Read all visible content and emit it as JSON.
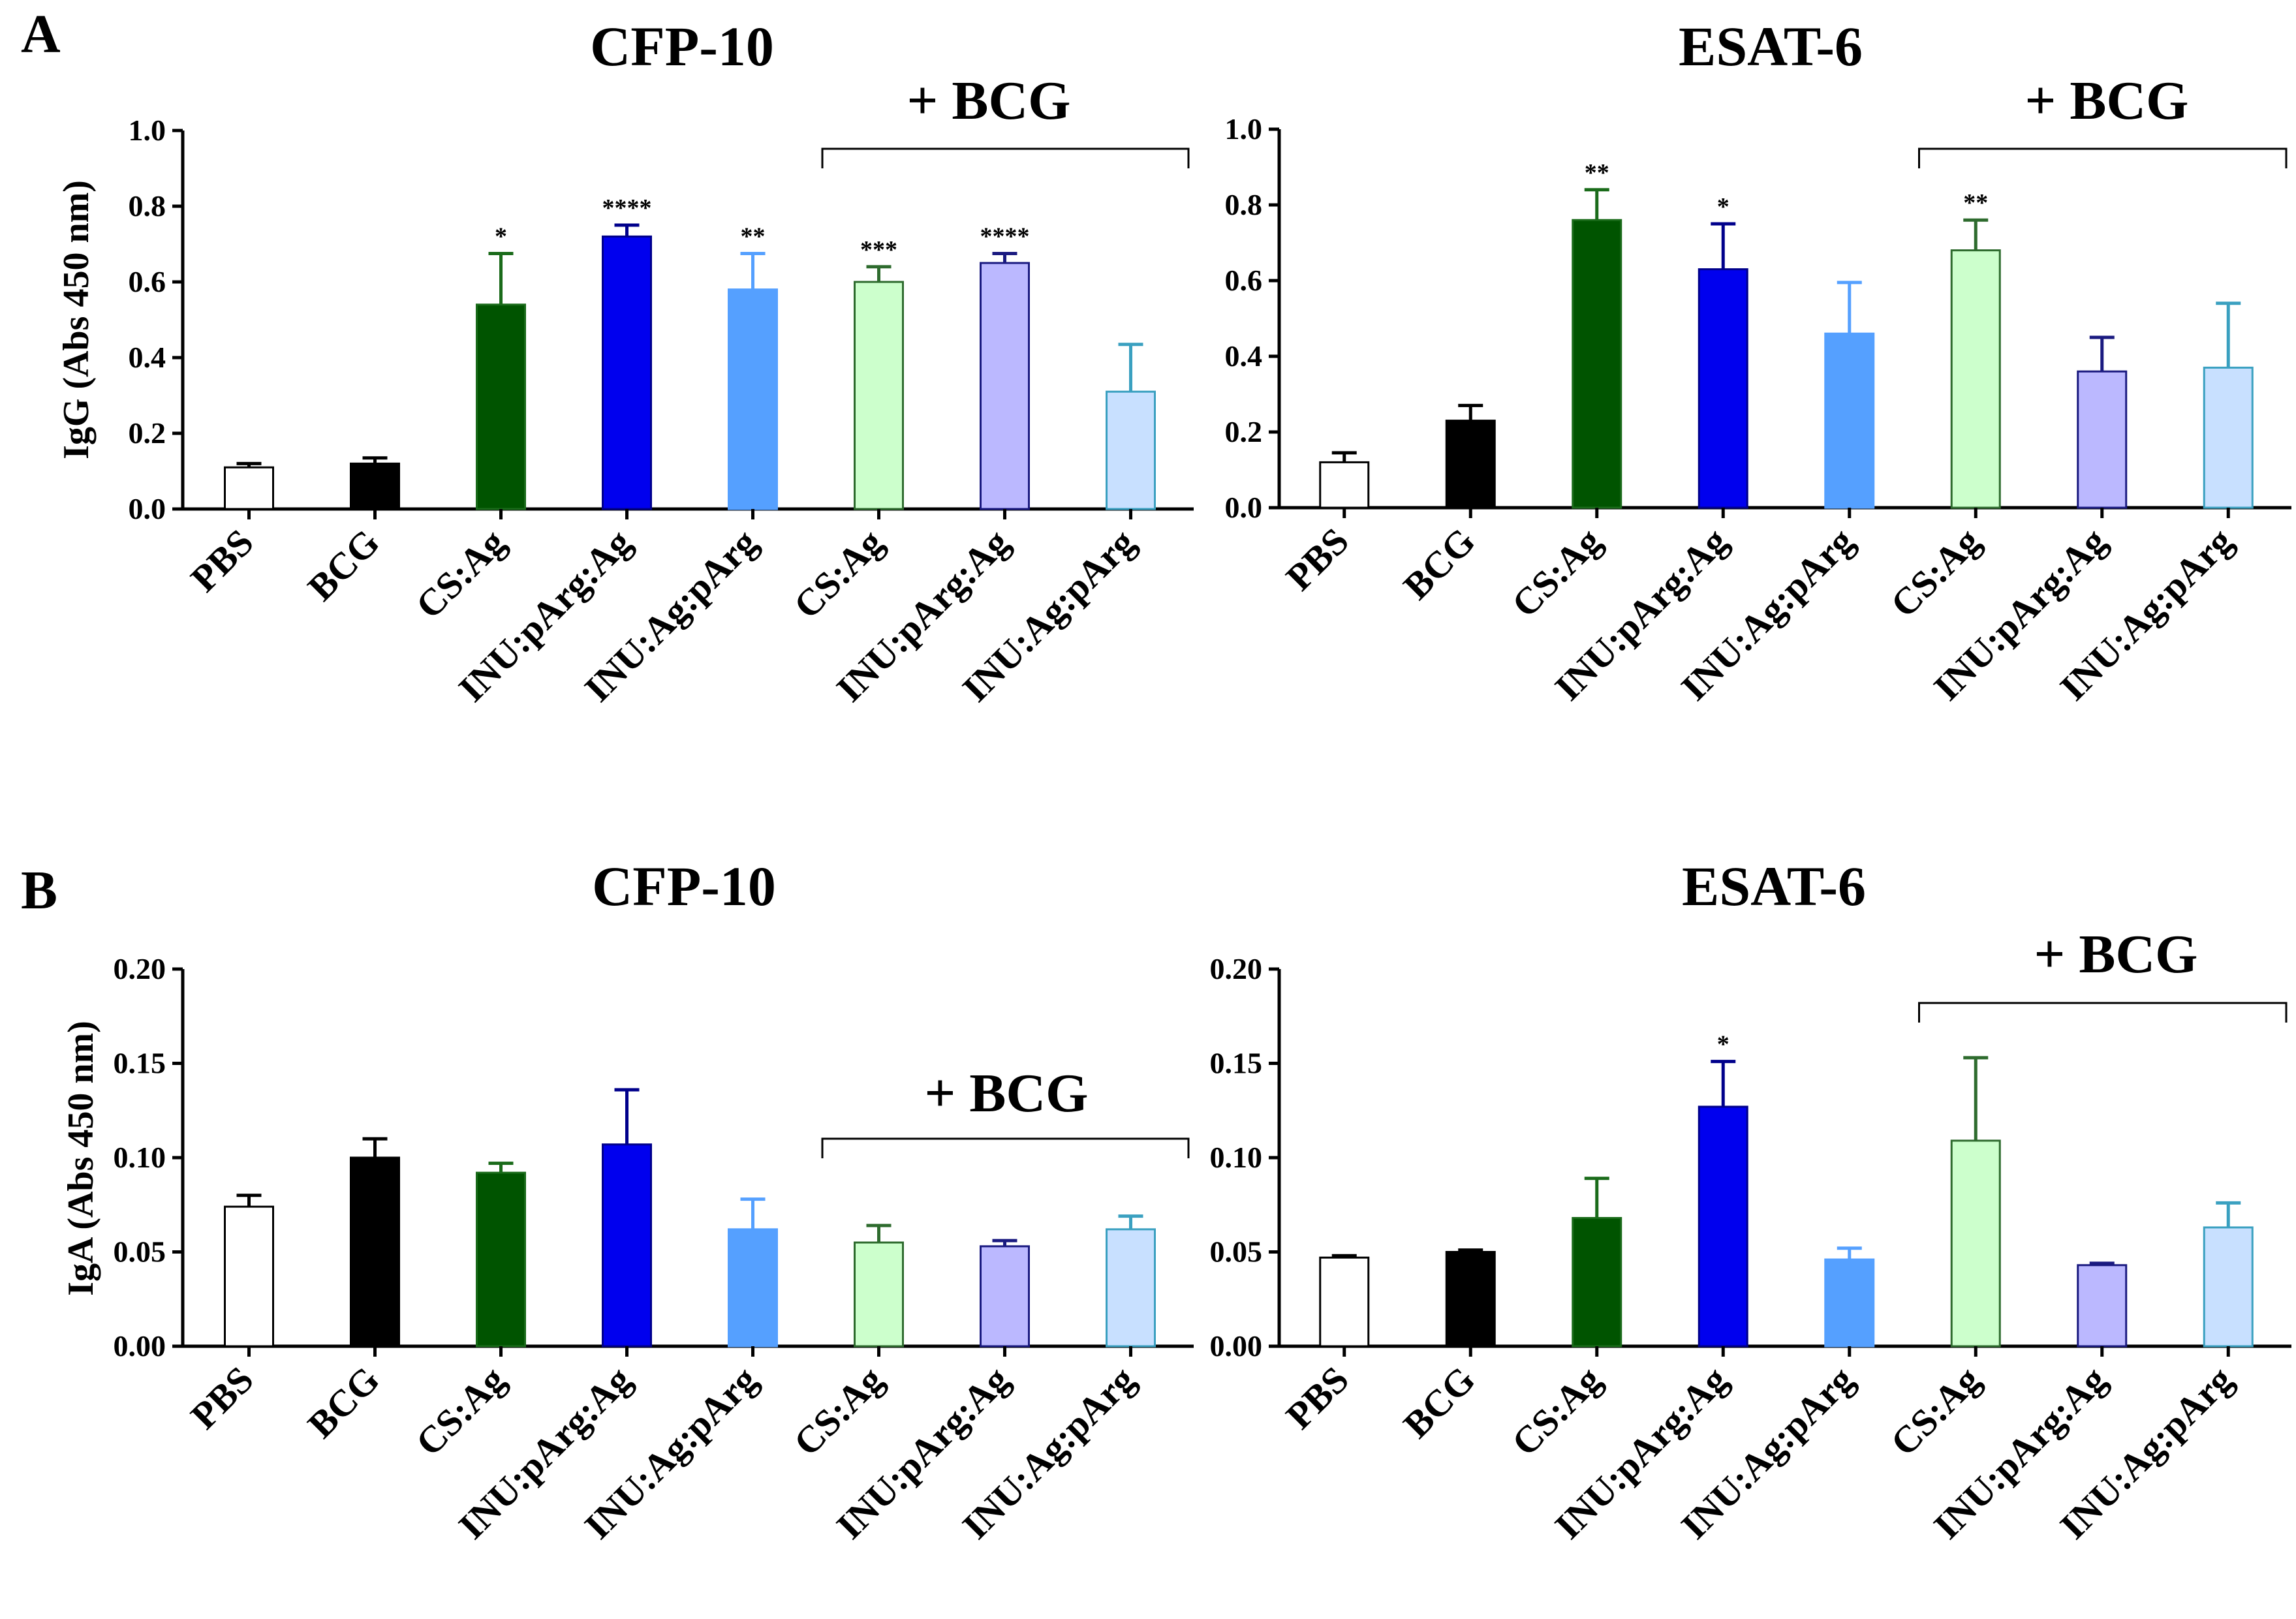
{
  "panel_letters": [
    "A",
    "B"
  ],
  "chart_data": [
    {
      "type": "bar",
      "panel": "A",
      "title": "CFP-10",
      "ylabel": "IgG (Abs 450 nm)",
      "xlabel": "",
      "ylim": [
        0,
        1.0
      ],
      "yticks": [
        "0.0",
        "0.2",
        "0.4",
        "0.6",
        "0.8",
        "1.0"
      ],
      "categories": [
        "PBS",
        "BCG",
        "CS:Ag",
        "INU:pArg:Ag",
        "INU:Ag:pArg",
        "CS:Ag",
        "INU:pArg:Ag",
        "INU:Ag:pArg"
      ],
      "values": [
        0.11,
        0.12,
        0.54,
        0.72,
        0.58,
        0.6,
        0.65,
        0.31
      ],
      "errors": [
        0.01,
        0.015,
        0.135,
        0.03,
        0.095,
        0.04,
        0.025,
        0.125
      ],
      "significance": [
        "",
        "",
        "*",
        "****",
        "**",
        "***",
        "****",
        ""
      ],
      "group_label": "+ BCG",
      "group_range": [
        5,
        7
      ]
    },
    {
      "type": "bar",
      "panel": "A",
      "title": "ESAT-6",
      "ylabel": "",
      "xlabel": "",
      "ylim": [
        0,
        1.0
      ],
      "yticks": [
        "0.0",
        "0.2",
        "0.4",
        "0.6",
        "0.8",
        "1.0"
      ],
      "categories": [
        "PBS",
        "BCG",
        "CS:Ag",
        "INU:pArg:Ag",
        "INU:Ag:pArg",
        "CS:Ag",
        "INU:pArg:Ag",
        "INU:Ag:pArg"
      ],
      "values": [
        0.12,
        0.23,
        0.76,
        0.63,
        0.46,
        0.68,
        0.36,
        0.37
      ],
      "errors": [
        0.025,
        0.04,
        0.08,
        0.12,
        0.135,
        0.08,
        0.09,
        0.17
      ],
      "significance": [
        "",
        "",
        "**",
        "*",
        "",
        "**",
        "",
        ""
      ],
      "group_label": "+ BCG",
      "group_range": [
        5,
        7
      ]
    },
    {
      "type": "bar",
      "panel": "B",
      "title": "CFP-10",
      "ylabel": "IgA (Abs 450 nm)",
      "xlabel": "",
      "ylim": [
        0,
        0.2
      ],
      "yticks": [
        "0.00",
        "0.05",
        "0.10",
        "0.15",
        "0.20"
      ],
      "categories": [
        "PBS",
        "BCG",
        "CS:Ag",
        "INU:pArg:Ag",
        "INU:Ag:pArg",
        "CS:Ag",
        "INU:pArg:Ag",
        "INU:Ag:pArg"
      ],
      "values": [
        0.074,
        0.1,
        0.092,
        0.107,
        0.062,
        0.055,
        0.053,
        0.062
      ],
      "errors": [
        0.006,
        0.01,
        0.005,
        0.029,
        0.016,
        0.009,
        0.003,
        0.007
      ],
      "significance": [
        "",
        "",
        "",
        "",
        "",
        "",
        "",
        ""
      ],
      "group_label": "+ BCG",
      "group_range": [
        5,
        7
      ]
    },
    {
      "type": "bar",
      "panel": "B",
      "title": "ESAT-6",
      "ylabel": "",
      "xlabel": "",
      "ylim": [
        0,
        0.2
      ],
      "yticks": [
        "0.00",
        "0.05",
        "0.10",
        "0.15",
        "0.20"
      ],
      "categories": [
        "PBS",
        "BCG",
        "CS:Ag",
        "INU:pArg:Ag",
        "INU:Ag:pArg",
        "CS:Ag",
        "INU:pArg:Ag",
        "INU:Ag:pArg"
      ],
      "values": [
        0.047,
        0.05,
        0.068,
        0.127,
        0.046,
        0.109,
        0.043,
        0.063
      ],
      "errors": [
        0.001,
        0.001,
        0.021,
        0.024,
        0.006,
        0.044,
        0.001,
        0.013
      ],
      "significance": [
        "",
        "",
        "",
        "*",
        "",
        "",
        "",
        ""
      ],
      "group_label": "+ BCG",
      "group_range": [
        5,
        7
      ]
    }
  ],
  "colors": {
    "fills": [
      "#ffffff",
      "#000000",
      "#005400",
      "#0000ee",
      "#55a0ff",
      "#ccffcc",
      "#bbb8ff",
      "#c8e0ff"
    ],
    "strokes": [
      "#000000",
      "#000000",
      "#1a6b1a",
      "#00008b",
      "#55a0ff",
      "#2e6b2e",
      "#1a1a80",
      "#3aa0c0"
    ],
    "axis": "#000000"
  }
}
